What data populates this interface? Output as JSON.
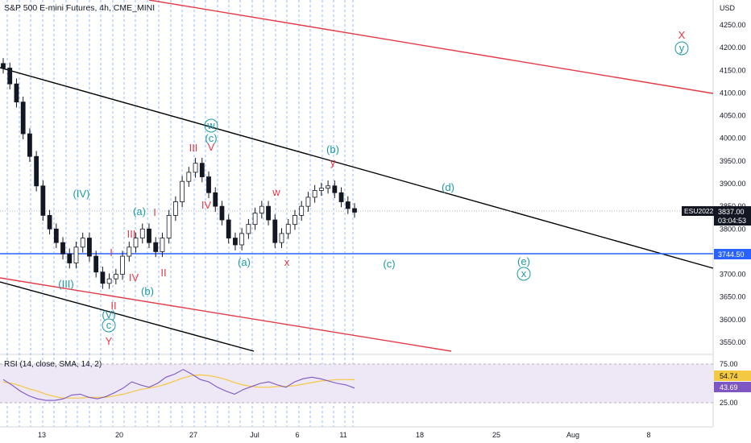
{
  "header": {
    "title": "S&P 500 E-mini Futures, 4h, CME_MINI"
  },
  "rsi_panel": {
    "title": "RSI (14, close, SMA, 14, 2)",
    "value_rsi": "43.69",
    "value_sma": "54.74"
  },
  "price_tags": {
    "symbol": "ESU2022",
    "last_price": "3837.00",
    "countdown": "03:04:53",
    "hline_price": "3744.50"
  },
  "colors": {
    "up": "#131722",
    "down": "#131722",
    "red_channel": "#e53946",
    "black_channel": "#000000",
    "hline": "#2962ff",
    "wave_teal": "#1b9aa3",
    "wave_red": "#e53946",
    "rsi": "#7e57c2",
    "rsi_ma": "#f5c842",
    "rsi_band": "#ede7f6"
  },
  "chart_data": {
    "type": "candlestick",
    "title": "S&P 500 E-mini Futures, 4h, CME_MINI",
    "y_axis": {
      "unit_label": "USD",
      "range": [
        3520,
        4300
      ],
      "ticks": [
        "4250.00",
        "4200.00",
        "4150.00",
        "4100.00",
        "4050.00",
        "4000.00",
        "3950.00",
        "3900.00",
        "3850.00",
        "3800.00",
        "3750.00",
        "3700.00",
        "3650.00",
        "3600.00",
        "3550.00"
      ]
    },
    "x_axis": {
      "ticks": [
        "13",
        "20",
        "27",
        "Jul",
        "6",
        "11",
        "18",
        "25",
        "Aug",
        "8"
      ]
    },
    "rsi_axis": {
      "ticks": [
        "75.00",
        "25.00"
      ]
    },
    "series_close_approx": [
      4155,
      4120,
      4080,
      4010,
      3960,
      3895,
      3830,
      3800,
      3770,
      3745,
      3725,
      3760,
      3780,
      3740,
      3705,
      3680,
      3690,
      3700,
      3740,
      3760,
      3780,
      3800,
      3770,
      3750,
      3780,
      3830,
      3860,
      3905,
      3925,
      3945,
      3915,
      3880,
      3850,
      3820,
      3780,
      3765,
      3790,
      3810,
      3835,
      3850,
      3820,
      3770,
      3790,
      3810,
      3830,
      3850,
      3870,
      3885,
      3890,
      3895,
      3880,
      3860,
      3845,
      3837
    ],
    "rsi_approx": [
      55,
      48,
      40,
      34,
      30,
      28,
      28,
      30,
      35,
      36,
      32,
      30,
      33,
      38,
      44,
      52,
      48,
      45,
      50,
      58,
      62,
      68,
      62,
      55,
      52,
      45,
      40,
      36,
      42,
      46,
      50,
      52,
      48,
      45,
      52,
      56,
      58,
      56,
      53,
      50,
      48,
      44
    ],
    "rsi_ma_approx": [
      52,
      50,
      47,
      43,
      40,
      36,
      33,
      31,
      31,
      31,
      32,
      32,
      32,
      34,
      36,
      39,
      42,
      44,
      46,
      49,
      53,
      57,
      60,
      61,
      60,
      58,
      55,
      51,
      48,
      46,
      45,
      45,
      46,
      46,
      47,
      49,
      51,
      53,
      54,
      55,
      55,
      54.7
    ],
    "horizontal_level": 3744.5,
    "elliott_wave_labels": [
      "(III)",
      "(IV)",
      "(V)",
      "c",
      "Y",
      "I",
      "II",
      "III",
      "IV",
      "(a)",
      "(b)",
      "(c)",
      "w",
      "V",
      "x",
      "y",
      "(b)",
      "(d)",
      "(c)",
      "(e)",
      "x",
      "y",
      "X"
    ]
  }
}
